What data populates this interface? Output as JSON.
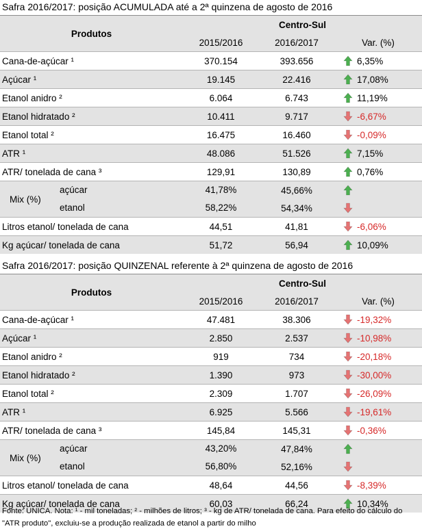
{
  "table1": {
    "title": "Safra 2016/2017: posição ACUMULADA até a 2ª quinzena de agosto de 2016",
    "header": {
      "produtos": "Produtos",
      "region": "Centro-Sul",
      "col1": "2015/2016",
      "col2": "2016/2017",
      "col3": "Var. (%)"
    },
    "rows": [
      {
        "label": "Cana-de-açúcar ¹",
        "v1": "370.154",
        "v2": "393.656",
        "var": "6,35%",
        "dir": "up"
      },
      {
        "label": "Açúcar ¹",
        "v1": "19.145",
        "v2": "22.416",
        "var": "17,08%",
        "dir": "up"
      },
      {
        "label": "Etanol anidro ²",
        "v1": "6.064",
        "v2": "6.743",
        "var": "11,19%",
        "dir": "up"
      },
      {
        "label": "Etanol hidratado ²",
        "v1": "10.411",
        "v2": "9.717",
        "var": "-6,67%",
        "dir": "down"
      },
      {
        "label": "Etanol total ²",
        "v1": "16.475",
        "v2": "16.460",
        "var": "-0,09%",
        "dir": "down"
      },
      {
        "label": "ATR ¹",
        "v1": "48.086",
        "v2": "51.526",
        "var": "7,15%",
        "dir": "up"
      },
      {
        "label": "ATR/ tonelada de cana ³",
        "v1": "129,91",
        "v2": "130,89",
        "var": "0,76%",
        "dir": "up"
      }
    ],
    "mix": {
      "label": "Mix (%)",
      "acucar": {
        "label": "açúcar",
        "v1": "41,78%",
        "v2": "45,66%",
        "dir": "up"
      },
      "etanol": {
        "label": "etanol",
        "v1": "58,22%",
        "v2": "54,34%",
        "dir": "down"
      }
    },
    "rows_after": [
      {
        "label": "Litros etanol/ tonelada de cana",
        "v1": "44,51",
        "v2": "41,81",
        "var": "-6,06%",
        "dir": "down"
      },
      {
        "label": "Kg açúcar/ tonelada de cana",
        "v1": "51,72",
        "v2": "56,94",
        "var": "10,09%",
        "dir": "up"
      }
    ]
  },
  "table2": {
    "title": "Safra 2016/2017: posição QUINZENAL referente à 2ª quinzena de agosto de 2016",
    "header": {
      "produtos": "Produtos",
      "region": "Centro-Sul",
      "col1": "2015/2016",
      "col2": "2016/2017",
      "col3": "Var. (%)"
    },
    "rows": [
      {
        "label": "Cana-de-açúcar ¹",
        "v1": "47.481",
        "v2": "38.306",
        "var": "-19,32%",
        "dir": "down"
      },
      {
        "label": "Açúcar ¹",
        "v1": "2.850",
        "v2": "2.537",
        "var": "-10,98%",
        "dir": "down"
      },
      {
        "label": "Etanol anidro ²",
        "v1": "919",
        "v2": "734",
        "var": "-20,18%",
        "dir": "down"
      },
      {
        "label": "Etanol hidratado ²",
        "v1": "1.390",
        "v2": "973",
        "var": "-30,00%",
        "dir": "down"
      },
      {
        "label": "Etanol total ²",
        "v1": "2.309",
        "v2": "1.707",
        "var": "-26,09%",
        "dir": "down"
      },
      {
        "label": "ATR ¹",
        "v1": "6.925",
        "v2": "5.566",
        "var": "-19,61%",
        "dir": "down"
      },
      {
        "label": "ATR/ tonelada de cana ³",
        "v1": "145,84",
        "v2": "145,31",
        "var": "-0,36%",
        "dir": "down"
      }
    ],
    "mix": {
      "label": "Mix (%)",
      "acucar": {
        "label": "açúcar",
        "v1": "43,20%",
        "v2": "47,84%",
        "dir": "up"
      },
      "etanol": {
        "label": "etanol",
        "v1": "56,80%",
        "v2": "52,16%",
        "dir": "down"
      }
    },
    "rows_after": [
      {
        "label": "Litros etanol/ tonelada de cana",
        "v1": "48,64",
        "v2": "44,56",
        "var": "-8,39%",
        "dir": "down"
      },
      {
        "label": "Kg açúcar/ tonelada de cana",
        "v1": "60,03",
        "v2": "66,24",
        "var": "10,34%",
        "dir": "up"
      }
    ]
  },
  "footnote": "Fonte: UNICA. Nota: ¹ - mil toneladas; ² - milhões de litros; ³ - kg de ATR/ tonelada de cana. Para efeito do cálculo do \"ATR produto\", excluiu-se a produção realizada de etanol a partir do milho",
  "colors": {
    "up": "#4caf50",
    "down": "#e57373",
    "negative_text": "#d62828",
    "shade": "#e3e3e3"
  },
  "icons": {
    "up": "arrow-up-icon",
    "down": "arrow-down-icon"
  }
}
